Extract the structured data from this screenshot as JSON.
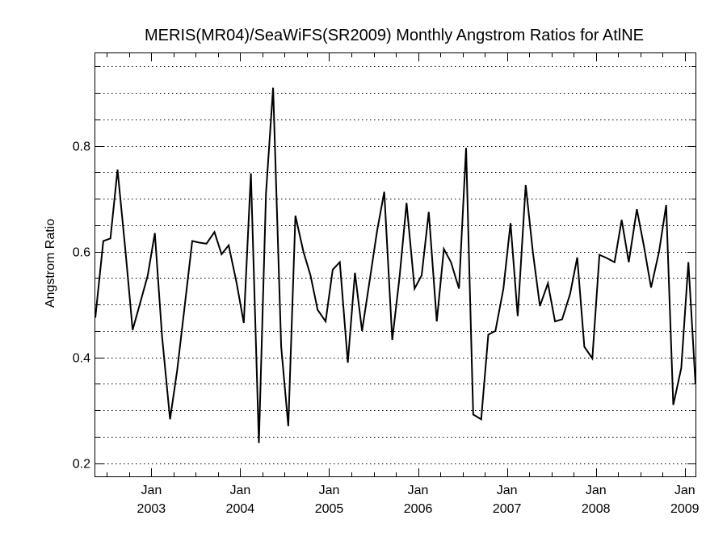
{
  "chart_data": {
    "type": "line",
    "title": "MERIS(MR04)/SeaWiFS(SR2009) Monthly Angstrom Ratios for AtlNE",
    "xlabel": "",
    "ylabel": "Angstrom Ratio",
    "xlim": [
      2002.37,
      2009.12
    ],
    "ylim": [
      0.175,
      0.975
    ],
    "grid": "horizontal-dotted",
    "y_ticks": [
      {
        "value": 0.2,
        "label": "0.2"
      },
      {
        "value": 0.4,
        "label": "0.4"
      },
      {
        "value": 0.6,
        "label": "0.6"
      },
      {
        "value": 0.8,
        "label": "0.8"
      }
    ],
    "y_minor_step": 0.05,
    "x_ticks": [
      {
        "value": 2003.0,
        "month": "Jan",
        "year": "2003"
      },
      {
        "value": 2004.0,
        "month": "Jan",
        "year": "2004"
      },
      {
        "value": 2005.0,
        "month": "Jan",
        "year": "2005"
      },
      {
        "value": 2006.0,
        "month": "Jan",
        "year": "2006"
      },
      {
        "value": 2007.0,
        "month": "Jan",
        "year": "2007"
      },
      {
        "value": 2008.0,
        "month": "Jan",
        "year": "2008"
      },
      {
        "value": 2009.0,
        "month": "Jan",
        "year": "2009"
      }
    ],
    "x_minor_step": 0.25,
    "series": [
      {
        "points": [
          [
            2002.37,
            0.475
          ],
          [
            2002.46,
            0.62
          ],
          [
            2002.54,
            0.625
          ],
          [
            2002.62,
            0.755
          ],
          [
            2002.71,
            0.6
          ],
          [
            2002.79,
            0.452
          ],
          [
            2002.87,
            0.5
          ],
          [
            2002.96,
            0.555
          ],
          [
            2003.04,
            0.635
          ],
          [
            2003.12,
            0.44
          ],
          [
            2003.21,
            0.283
          ],
          [
            2003.29,
            0.375
          ],
          [
            2003.37,
            0.49
          ],
          [
            2003.46,
            0.62
          ],
          [
            2003.54,
            0.617
          ],
          [
            2003.62,
            0.615
          ],
          [
            2003.71,
            0.637
          ],
          [
            2003.79,
            0.595
          ],
          [
            2003.87,
            0.612
          ],
          [
            2003.96,
            0.54
          ],
          [
            2004.04,
            0.465
          ],
          [
            2004.12,
            0.748
          ],
          [
            2004.21,
            0.238
          ],
          [
            2004.29,
            0.71
          ],
          [
            2004.37,
            0.91
          ],
          [
            2004.46,
            0.42
          ],
          [
            2004.54,
            0.27
          ],
          [
            2004.62,
            0.668
          ],
          [
            2004.71,
            0.6
          ],
          [
            2004.79,
            0.555
          ],
          [
            2004.87,
            0.49
          ],
          [
            2004.96,
            0.468
          ],
          [
            2005.04,
            0.566
          ],
          [
            2005.12,
            0.58
          ],
          [
            2005.21,
            0.39
          ],
          [
            2005.29,
            0.56
          ],
          [
            2005.37,
            0.45
          ],
          [
            2005.46,
            0.55
          ],
          [
            2005.54,
            0.64
          ],
          [
            2005.62,
            0.713
          ],
          [
            2005.71,
            0.433
          ],
          [
            2005.79,
            0.55
          ],
          [
            2005.87,
            0.692
          ],
          [
            2005.96,
            0.53
          ],
          [
            2006.04,
            0.555
          ],
          [
            2006.12,
            0.675
          ],
          [
            2006.21,
            0.468
          ],
          [
            2006.29,
            0.605
          ],
          [
            2006.37,
            0.58
          ],
          [
            2006.46,
            0.53
          ],
          [
            2006.54,
            0.796
          ],
          [
            2006.62,
            0.292
          ],
          [
            2006.71,
            0.283
          ],
          [
            2006.79,
            0.443
          ],
          [
            2006.87,
            0.45
          ],
          [
            2006.96,
            0.53
          ],
          [
            2007.04,
            0.654
          ],
          [
            2007.12,
            0.478
          ],
          [
            2007.21,
            0.726
          ],
          [
            2007.29,
            0.6
          ],
          [
            2007.37,
            0.497
          ],
          [
            2007.46,
            0.54
          ],
          [
            2007.54,
            0.468
          ],
          [
            2007.62,
            0.472
          ],
          [
            2007.71,
            0.52
          ],
          [
            2007.79,
            0.589
          ],
          [
            2007.87,
            0.42
          ],
          [
            2007.96,
            0.398
          ],
          [
            2008.04,
            0.594
          ],
          [
            2008.12,
            0.588
          ],
          [
            2008.21,
            0.58
          ],
          [
            2008.29,
            0.66
          ],
          [
            2008.37,
            0.58
          ],
          [
            2008.46,
            0.68
          ],
          [
            2008.54,
            0.61
          ],
          [
            2008.62,
            0.532
          ],
          [
            2008.71,
            0.6
          ],
          [
            2008.79,
            0.688
          ],
          [
            2008.87,
            0.31
          ],
          [
            2008.96,
            0.38
          ],
          [
            2009.04,
            0.58
          ],
          [
            2009.12,
            0.35
          ]
        ]
      }
    ]
  }
}
